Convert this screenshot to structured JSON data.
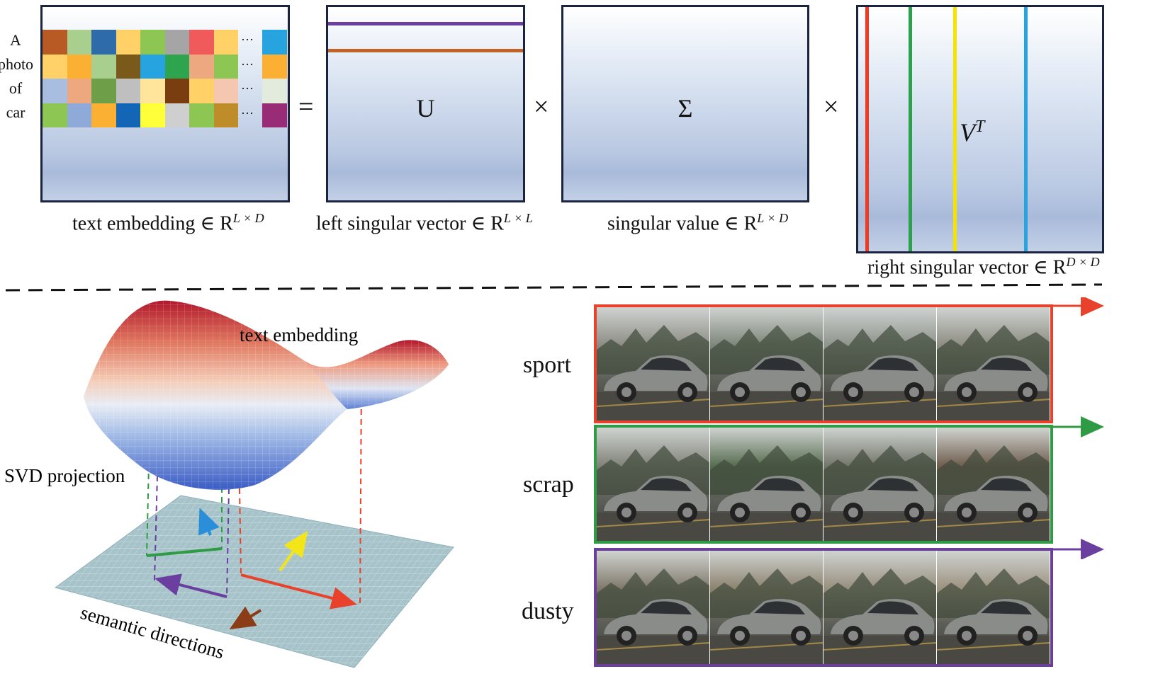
{
  "top": {
    "prompt_words": [
      "A",
      "photo",
      "of",
      "car"
    ],
    "ellipsis": "···",
    "equals": "=",
    "times": "×",
    "matrices": {
      "embedding": {
        "label": "text embedding ∈ R",
        "sup": "L × D"
      },
      "u": {
        "symbol": "U",
        "label": "left singular vector ∈ R",
        "sup": "L × L"
      },
      "sigma": {
        "symbol": "Σ",
        "label": "singular value ∈ R",
        "sup": "L × D"
      },
      "vt": {
        "symbol": "V",
        "symbol_sup": "T",
        "label": "right singular vector ∈ R",
        "sup": "D × D"
      }
    },
    "grid_colors": [
      [
        "#b85a24",
        "#a9cf8f",
        "#2e6bab",
        "#ffd166",
        "#8dc653",
        "#a5a5a5",
        "#f05a5a",
        "#ffd166"
      ],
      [
        "#ffd166",
        "#fbb034",
        "#a9cf8f",
        "#7a5a1b",
        "#27a3e0",
        "#2ea44f",
        "#eea87f",
        "#8dc653"
      ],
      [
        "#a9bde0",
        "#eea87f",
        "#6e9e47",
        "#bfbfbf",
        "#ffe49c",
        "#7a3d10",
        "#ffd166",
        "#f6c7b0"
      ],
      [
        "#8dc653",
        "#8fa9d8",
        "#fbb034",
        "#1366b5",
        "#ffff3a",
        "#cfcfcf",
        "#8dc653",
        "#bf8c2a"
      ]
    ],
    "last_col_colors": [
      "#27a3e0",
      "#fbb034",
      "#e3ecdc",
      "#992c77"
    ],
    "u_line_colors": [
      "#6a3fa0",
      "#c0612a"
    ],
    "vt_line_colors": [
      "#ef3b24",
      "#2aa14a",
      "#f5e400",
      "#27a3e0"
    ]
  },
  "bottom": {
    "surface_label": "text embedding",
    "projection_label": "SVD projection",
    "plane_label": "semantic directions",
    "rows": [
      {
        "label": "sport",
        "color": "#e8412c"
      },
      {
        "label": "scrap",
        "color": "#2f9c45"
      },
      {
        "label": "dusty",
        "color": "#6a3f9a"
      }
    ],
    "arrow_colors": {
      "yellow": "#f2e61a",
      "blue": "#2a8fd8",
      "brown": "#8a3d17",
      "red": "#e8412c",
      "purple": "#6a3fa0",
      "green": "#2f9c45"
    }
  }
}
